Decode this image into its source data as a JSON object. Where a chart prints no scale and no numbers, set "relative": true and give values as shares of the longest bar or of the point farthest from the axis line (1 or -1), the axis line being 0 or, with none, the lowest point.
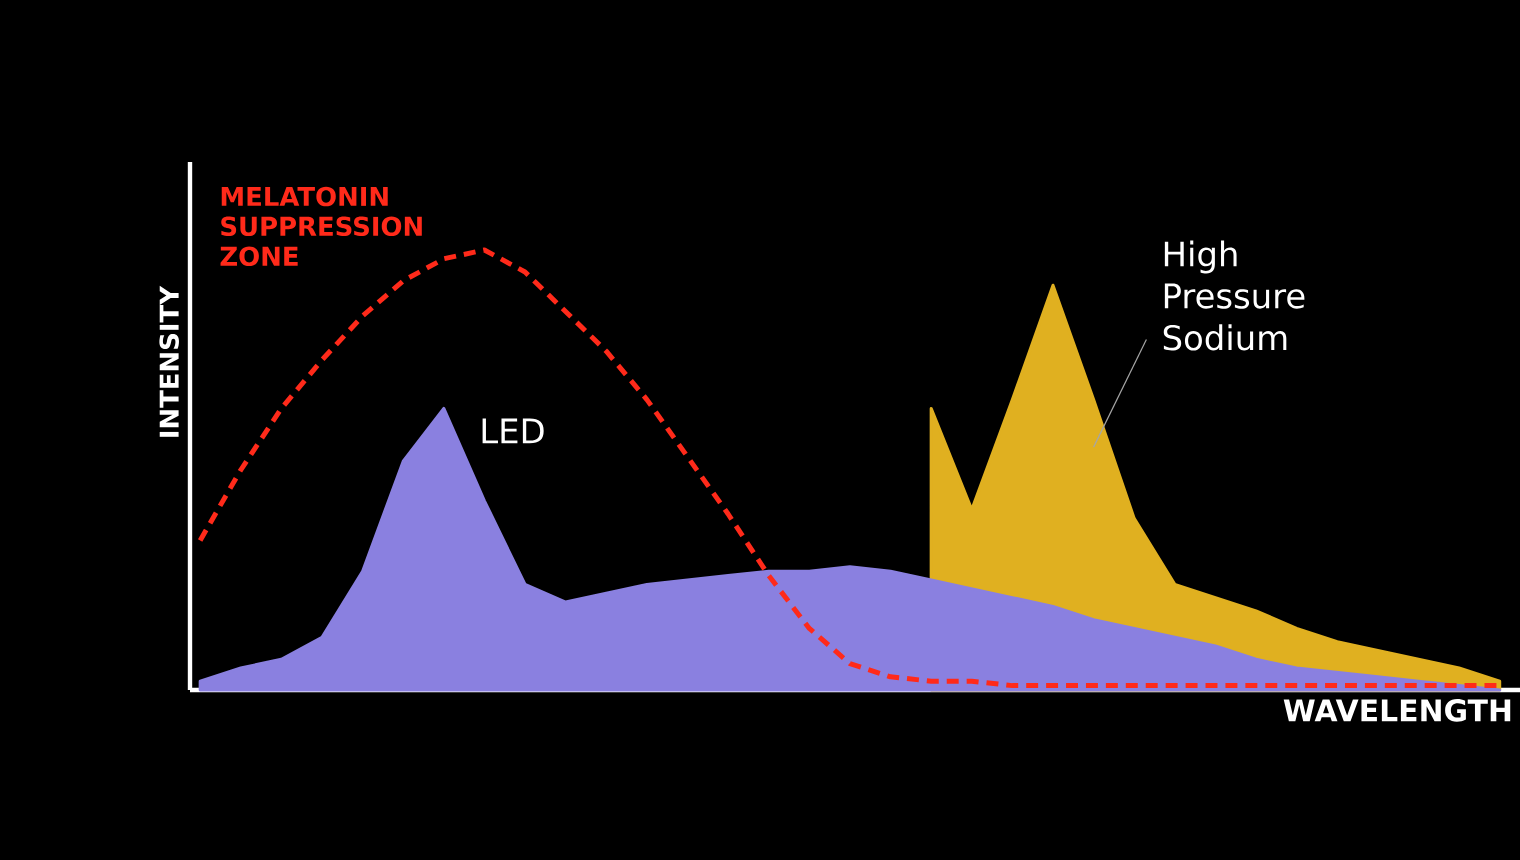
{
  "chart_data": {
    "type": "area",
    "relative": true,
    "xlabel": "WAVELENGTH",
    "ylabel": "INTENSITY",
    "categories": [
      null,
      null,
      null,
      null,
      null,
      null,
      null,
      null,
      null,
      null,
      null,
      null,
      null,
      null,
      null,
      null,
      null,
      null,
      null,
      null,
      null,
      null,
      null,
      null,
      null,
      null,
      null,
      null,
      null,
      null,
      null,
      null,
      null
    ],
    "series": [
      {
        "name": "MELATONIN SUPPRESSION ZONE",
        "type": "line",
        "color": "#ff2a1a",
        "line_style": "dashed",
        "values": [
          0.34,
          0.5,
          0.64,
          0.75,
          0.85,
          0.93,
          0.98,
          1,
          0.95,
          0.86,
          0.77,
          0.66,
          0.53,
          0.4,
          0.26,
          0.14,
          0.06,
          0.03,
          0.02,
          0.02,
          0.01,
          0.01,
          0.01,
          0.01,
          0.01,
          0.01,
          0.01,
          0.01,
          0.01,
          0.01,
          0.01,
          0.01,
          0.01
        ]
      },
      {
        "name": "High Pressure Sodium",
        "color": "#e0b020",
        "values": [
          null,
          null,
          null,
          null,
          null,
          null,
          null,
          null,
          null,
          null,
          null,
          null,
          null,
          null,
          null,
          null,
          null,
          null,
          0.64,
          0.41,
          0.66,
          0.92,
          0.66,
          0.39,
          0.24,
          0.21,
          0.18,
          0.14,
          0.11,
          0.09,
          0.07,
          0.05,
          0.02
        ]
      },
      {
        "name": "LED",
        "color": "#8a80e0",
        "values": [
          0.02,
          0.05,
          0.07,
          0.12,
          0.27,
          0.52,
          0.64,
          0.43,
          0.24,
          0.2,
          0.22,
          0.24,
          0.25,
          0.26,
          0.27,
          0.27,
          0.28,
          0.27,
          0.25,
          0.23,
          0.21,
          0.19,
          0.16,
          0.14,
          0.12,
          0.1,
          0.07,
          0.05,
          0.04,
          0.03,
          0.02,
          0.01,
          0
        ]
      }
    ]
  }
}
